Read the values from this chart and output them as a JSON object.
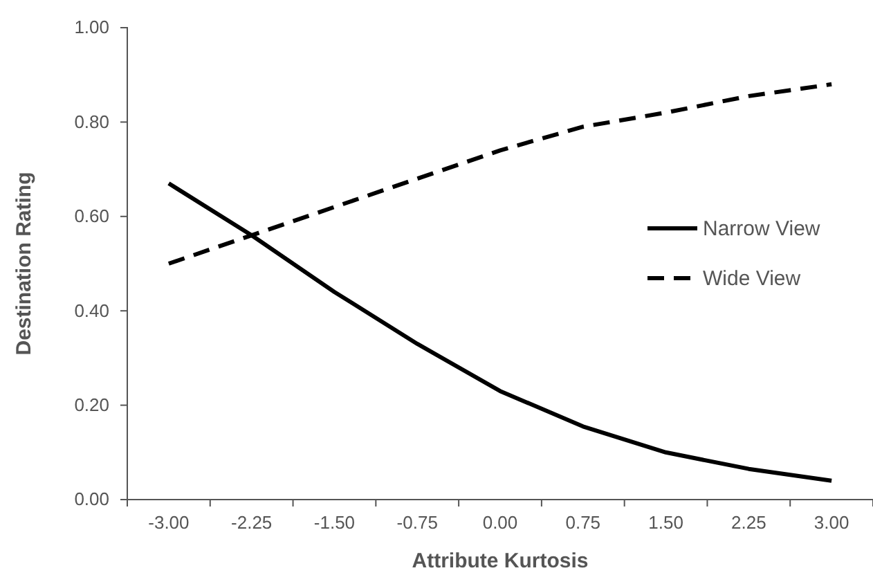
{
  "chart_data": {
    "type": "line",
    "xlabel": "Attribute Kurtosis",
    "ylabel": "Destination Rating",
    "categories": [
      "-3.00",
      "-2.25",
      "-1.50",
      "-0.75",
      "0.00",
      "0.75",
      "1.50",
      "2.25",
      "3.00"
    ],
    "series": [
      {
        "name": "Narrow View",
        "color": "#000000",
        "line_style": "solid",
        "values": [
          0.67,
          0.56,
          0.44,
          0.33,
          0.23,
          0.155,
          0.1,
          0.065,
          0.04
        ]
      },
      {
        "name": "Wide View",
        "color": "#000000",
        "line_style": "dashed",
        "values": [
          0.5,
          0.56,
          0.62,
          0.68,
          0.74,
          0.79,
          0.82,
          0.855,
          0.88
        ]
      }
    ],
    "ylim": [
      0,
      1
    ],
    "yticks": [
      {
        "value": 0,
        "label": "0.00"
      },
      {
        "value": 0.2,
        "label": "0.20"
      },
      {
        "value": 0.4,
        "label": "0.40"
      },
      {
        "value": 0.6,
        "label": "0.60"
      },
      {
        "value": 0.8,
        "label": "0.80"
      },
      {
        "value": 1,
        "label": "1.00"
      }
    ],
    "grid": false,
    "legend": "right",
    "marker": "none"
  }
}
